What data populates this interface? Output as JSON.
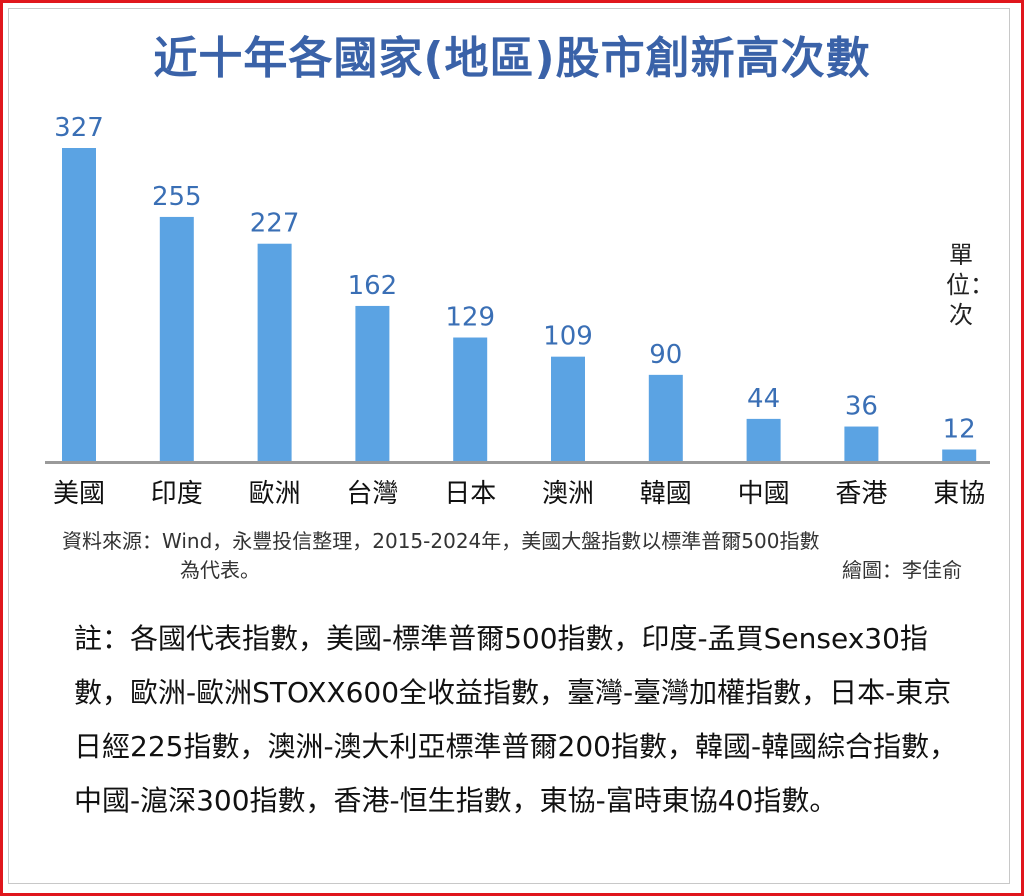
{
  "chart_data": {
    "type": "bar",
    "title": "近十年各國家(地區)股市創新高次數",
    "unit": "單位：次",
    "categories": [
      "美國",
      "印度",
      "歐洲",
      "台灣",
      "日本",
      "澳洲",
      "韓國",
      "中國",
      "香港",
      "東協"
    ],
    "values": [
      327,
      255,
      227,
      162,
      129,
      109,
      90,
      44,
      36,
      12
    ],
    "ylim": [
      0,
      327
    ],
    "grid": false,
    "bar_color": "#5ba3e3",
    "label_color": "#3a6fb5",
    "title_color": "#3a62a8"
  },
  "source": "資料來源：Wind，永豐投信整理，2015-2024年，美國大盤指數以標準普爾500指數",
  "source_cont": "為代表。",
  "credit": "繪圖：李佳俞",
  "note": "註：各國代表指數，美國-標準普爾500指數，印度-孟買Sensex30指數，歐洲-歐洲STOXX600全收益指數，臺灣-臺灣加權指數，日本-東京日經225指數，澳洲-澳大利亞標準普爾200指數，韓國-韓國綜合指數，中國-滬深300指數，香港-恒生指數，東協-富時東協40指數。"
}
